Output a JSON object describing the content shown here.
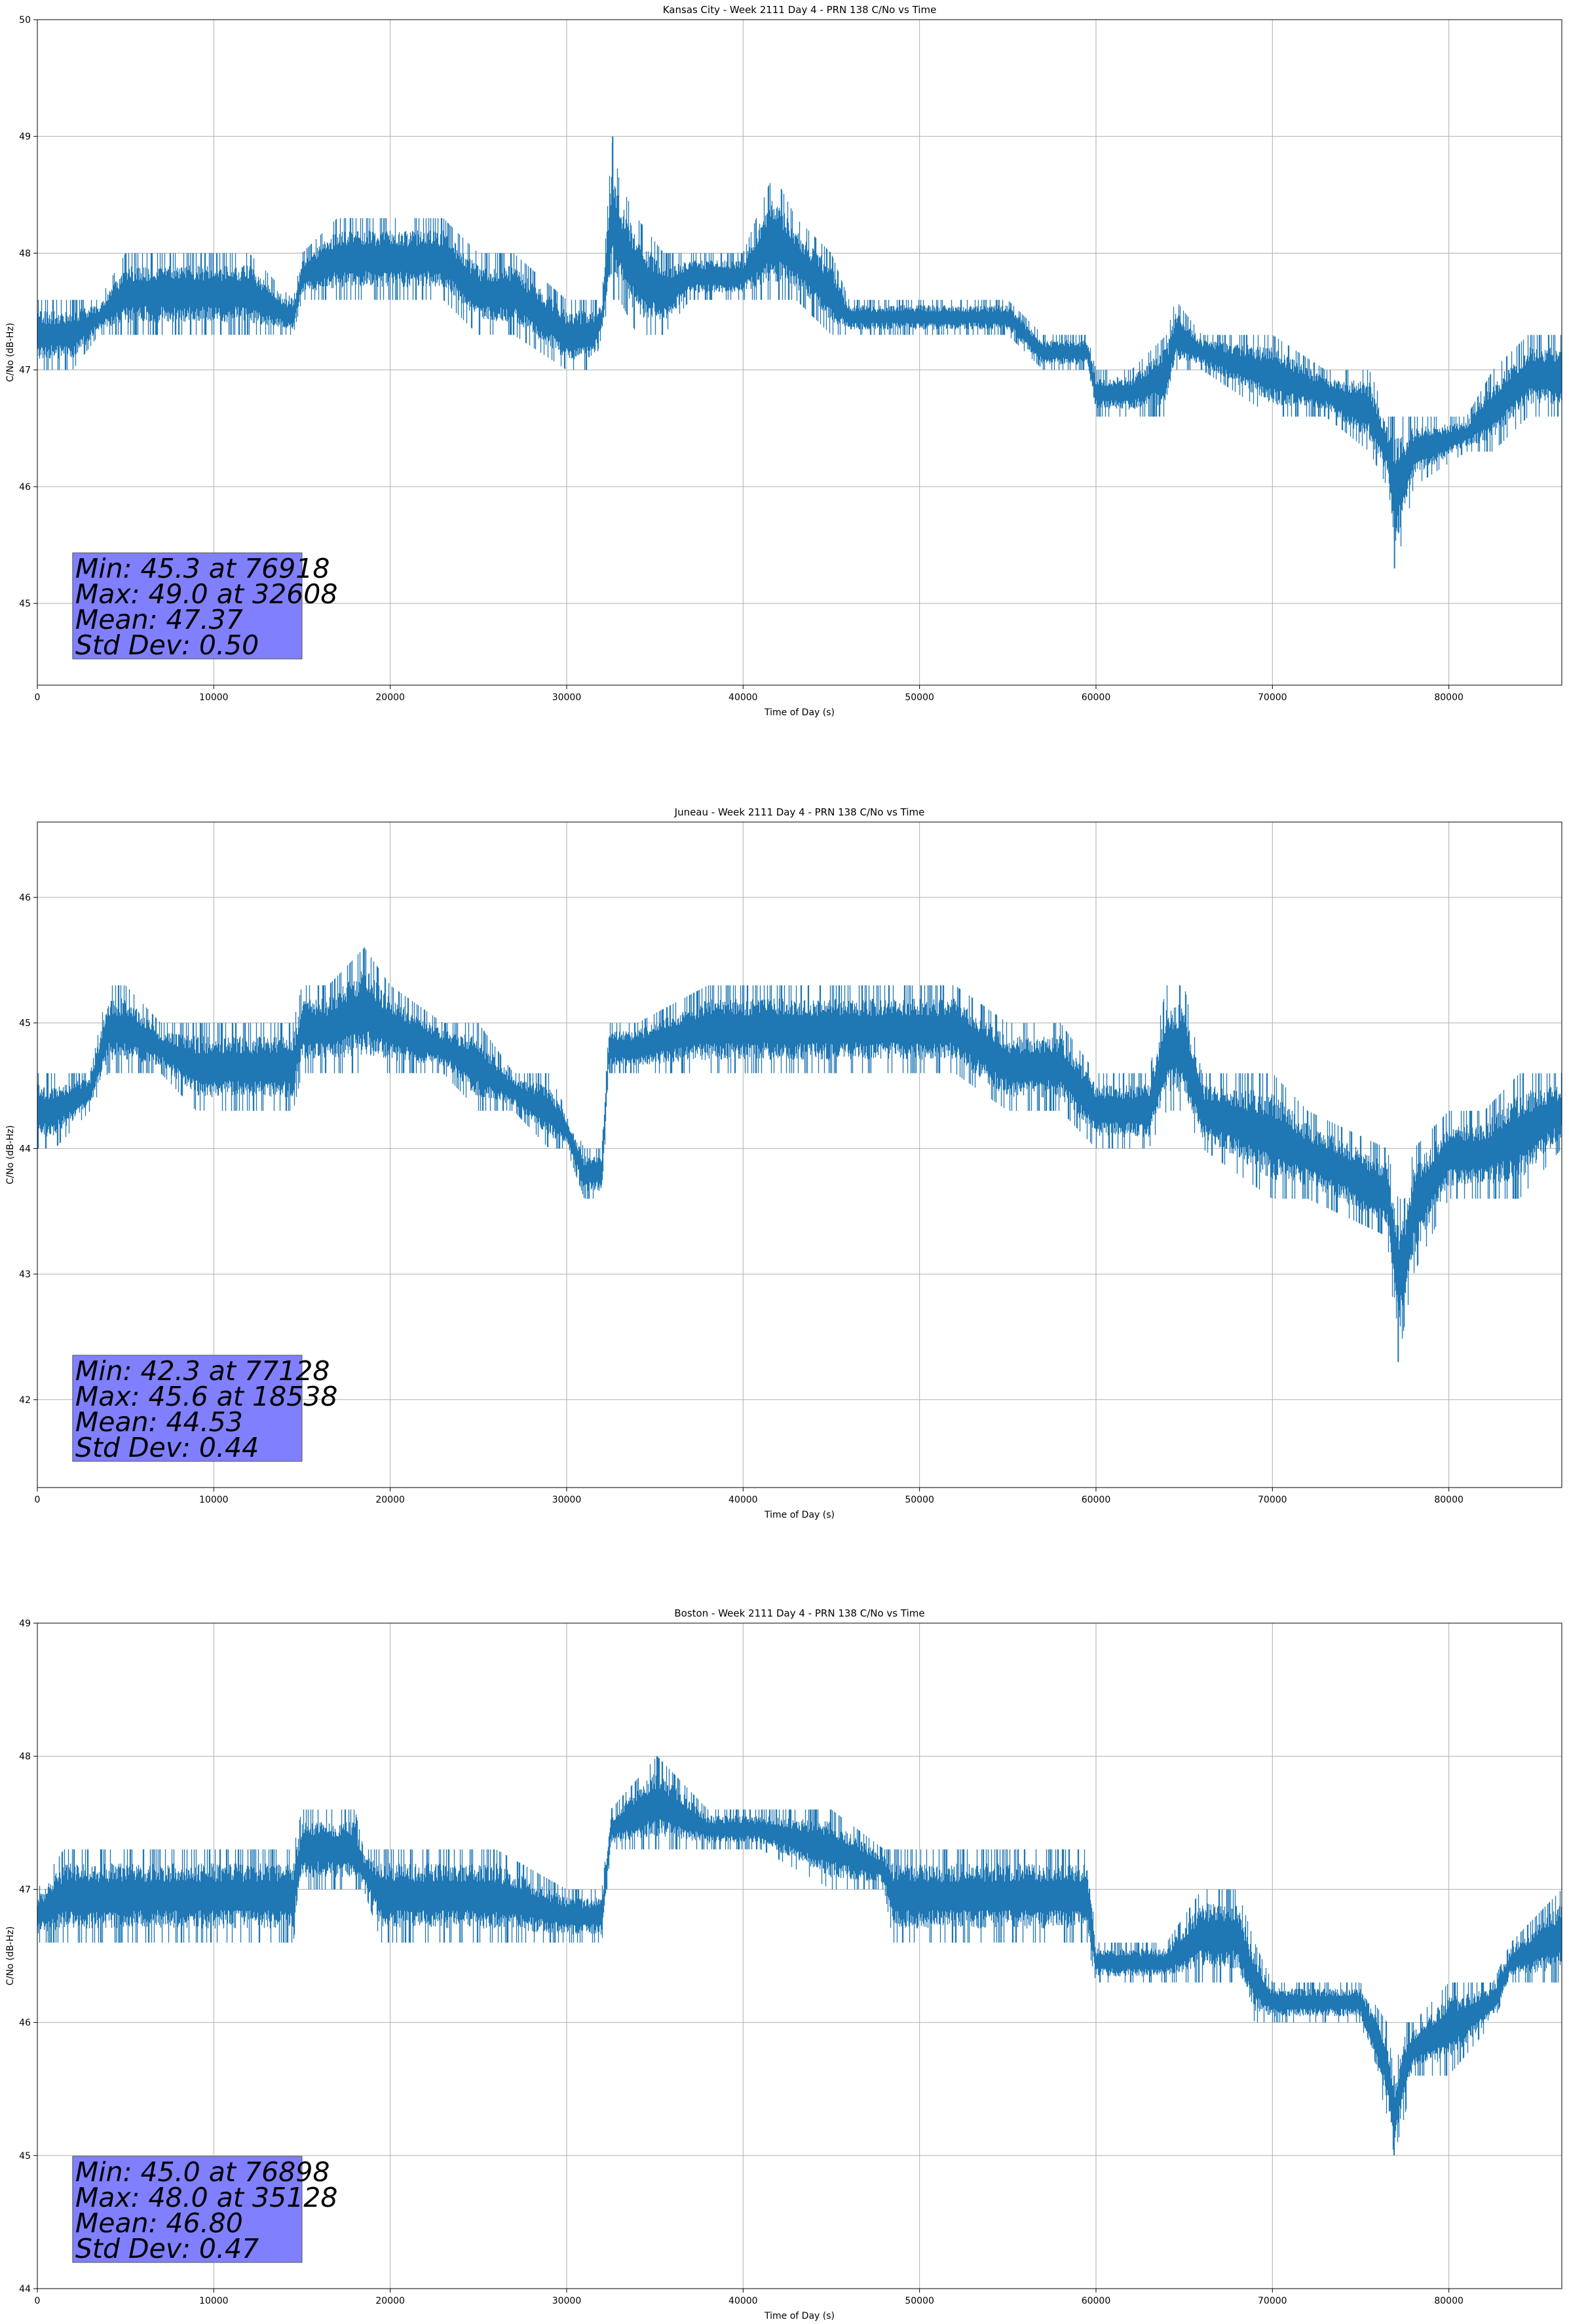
{
  "chart_data": [
    {
      "type": "line",
      "title": "Kansas City - Week 2111 Day 4 - PRN 138 C/No vs Time",
      "xlabel": "Time of Day (s)",
      "ylabel": "C/No (dB-Hz)",
      "xlim": [
        0,
        86400
      ],
      "ylim": [
        44.3,
        50
      ],
      "xticks": [
        0,
        10000,
        20000,
        30000,
        40000,
        50000,
        60000,
        70000,
        80000
      ],
      "yticks": [
        45,
        46,
        47,
        48,
        49,
        50
      ],
      "grid": true,
      "series_color": "#1f77b4",
      "stats": [
        "Min: 45.3 at 76918",
        "Max: 49.0 at 32608",
        "Mean: 47.37",
        "Std Dev: 0.50"
      ],
      "series": [
        {
          "x": [
            0,
            1000,
            2000,
            3500,
            5000,
            6000,
            9000,
            12000,
            14500,
            15000,
            17000,
            20000,
            23000,
            25000,
            27000,
            30000,
            31500,
            32000,
            32400,
            32608,
            33000,
            34000,
            35500,
            37000,
            40000,
            41500,
            42000,
            43000,
            45000,
            46000,
            48000,
            50000,
            55000,
            57000,
            59500,
            60000,
            62000,
            64000,
            64500,
            66000,
            70000,
            73000,
            75500,
            76500,
            76918,
            77500,
            78000,
            81000,
            82500,
            84500,
            86400
          ],
          "low": [
            47.0,
            47.0,
            47.0,
            47.3,
            47.3,
            47.3,
            47.3,
            47.3,
            47.3,
            47.6,
            47.6,
            47.6,
            47.6,
            47.3,
            47.3,
            47.0,
            47.0,
            47.3,
            47.6,
            47.6,
            47.6,
            47.3,
            47.3,
            47.6,
            47.6,
            47.6,
            47.6,
            47.6,
            47.3,
            47.3,
            47.3,
            47.3,
            47.3,
            47.0,
            47.0,
            46.6,
            46.6,
            46.6,
            47.0,
            47.0,
            46.6,
            46.6,
            46.3,
            46.0,
            45.3,
            45.6,
            46.0,
            46.3,
            46.3,
            46.6,
            46.6
          ],
          "high": [
            47.6,
            47.6,
            47.6,
            47.6,
            48.0,
            48.0,
            48.0,
            48.0,
            47.6,
            48.0,
            48.3,
            48.3,
            48.3,
            48.0,
            48.0,
            47.6,
            47.6,
            47.6,
            48.6,
            49.0,
            48.6,
            48.3,
            48.0,
            48.0,
            48.0,
            48.6,
            48.6,
            48.3,
            48.0,
            47.6,
            47.6,
            47.6,
            47.6,
            47.3,
            47.3,
            47.0,
            47.0,
            47.3,
            47.6,
            47.3,
            47.3,
            47.0,
            47.0,
            46.6,
            46.6,
            46.6,
            46.6,
            46.6,
            47.0,
            47.3,
            47.3
          ]
        }
      ]
    },
    {
      "type": "line",
      "title": "Juneau - Week 2111 Day 4 - PRN 138 C/No vs Time",
      "xlabel": "Time of Day (s)",
      "ylabel": "C/No (dB-Hz)",
      "xlim": [
        0,
        86400
      ],
      "ylim": [
        41.3,
        46.6
      ],
      "xticks": [
        0,
        10000,
        20000,
        30000,
        40000,
        50000,
        60000,
        70000,
        80000
      ],
      "yticks": [
        42,
        43,
        44,
        45,
        46
      ],
      "grid": true,
      "series_color": "#1f77b4",
      "stats": [
        "Min: 42.3 at 77128",
        "Max: 45.6 at 18538",
        "Mean: 44.53",
        "Std Dev: 0.44"
      ],
      "series": [
        {
          "x": [
            0,
            1000,
            3000,
            4000,
            5000,
            7000,
            9000,
            12000,
            14500,
            15000,
            16500,
            18538,
            20000,
            23000,
            25000,
            27000,
            29000,
            30000,
            31000,
            32000,
            32400,
            34000,
            38000,
            42000,
            46000,
            50000,
            52000,
            55000,
            58000,
            60000,
            62000,
            63000,
            64000,
            65000,
            66000,
            70000,
            72000,
            76500,
            77128,
            77500,
            78000,
            80000,
            82000,
            84000,
            86400
          ],
          "low": [
            44.0,
            44.0,
            44.3,
            44.6,
            44.6,
            44.6,
            44.3,
            44.3,
            44.3,
            44.6,
            44.6,
            44.6,
            44.6,
            44.6,
            44.3,
            44.3,
            44.0,
            44.0,
            43.6,
            43.6,
            44.6,
            44.6,
            44.6,
            44.6,
            44.6,
            44.6,
            44.6,
            44.3,
            44.3,
            44.0,
            44.0,
            44.0,
            44.3,
            44.3,
            44.0,
            43.6,
            43.6,
            43.3,
            42.3,
            42.6,
            43.0,
            43.6,
            43.6,
            43.6,
            44.0
          ],
          "high": [
            44.6,
            44.6,
            44.6,
            45.3,
            45.3,
            45.0,
            45.0,
            45.0,
            45.0,
            45.3,
            45.3,
            45.6,
            45.3,
            45.0,
            45.0,
            44.6,
            44.6,
            44.3,
            44.0,
            44.0,
            45.0,
            45.0,
            45.3,
            45.3,
            45.3,
            45.3,
            45.3,
            45.0,
            45.0,
            44.6,
            44.6,
            44.6,
            45.3,
            45.3,
            44.6,
            44.6,
            44.3,
            44.0,
            43.6,
            43.6,
            44.0,
            44.3,
            44.3,
            44.6,
            44.6
          ]
        }
      ]
    },
    {
      "type": "line",
      "title": "Boston - Week 2111 Day 4 - PRN 138 C/No vs Time",
      "xlabel": "Time of Day (s)",
      "ylabel": "C/No (dB-Hz)",
      "xlim": [
        0,
        86400
      ],
      "ylim": [
        44,
        49
      ],
      "xticks": [
        0,
        10000,
        20000,
        30000,
        40000,
        50000,
        60000,
        70000,
        80000
      ],
      "yticks": [
        44,
        45,
        46,
        47,
        48,
        49
      ],
      "grid": true,
      "series_color": "#1f77b4",
      "stats": [
        "Min: 45.0 at 76898",
        "Max: 48.0 at 35128",
        "Mean: 46.80",
        "Std Dev: 0.47"
      ],
      "series": [
        {
          "x": [
            0,
            1500,
            3000,
            6000,
            10000,
            14500,
            15000,
            18000,
            18500,
            19500,
            22000,
            26000,
            30000,
            32000,
            32500,
            35128,
            38000,
            41000,
            45000,
            48000,
            48500,
            52000,
            56000,
            59500,
            60000,
            64000,
            66000,
            68000,
            69000,
            70000,
            75000,
            76500,
            76898,
            77500,
            78000,
            80000,
            82500,
            83500,
            86400
          ],
          "low": [
            46.6,
            46.6,
            46.6,
            46.6,
            46.6,
            46.6,
            47.0,
            47.0,
            47.0,
            46.6,
            46.6,
            46.6,
            46.6,
            46.6,
            47.3,
            47.3,
            47.3,
            47.3,
            47.0,
            47.0,
            46.6,
            46.6,
            46.6,
            46.6,
            46.3,
            46.3,
            46.3,
            46.3,
            46.0,
            46.0,
            46.0,
            45.3,
            45.0,
            45.3,
            45.6,
            45.6,
            46.0,
            46.3,
            46.3
          ],
          "high": [
            47.0,
            47.3,
            47.3,
            47.3,
            47.3,
            47.3,
            47.6,
            47.6,
            47.3,
            47.3,
            47.3,
            47.3,
            47.0,
            47.0,
            47.6,
            48.0,
            47.6,
            47.6,
            47.6,
            47.3,
            47.3,
            47.3,
            47.3,
            47.3,
            46.6,
            46.6,
            47.0,
            47.0,
            46.6,
            46.3,
            46.3,
            46.0,
            45.6,
            46.0,
            46.0,
            46.3,
            46.3,
            46.6,
            47.0
          ]
        }
      ]
    }
  ]
}
